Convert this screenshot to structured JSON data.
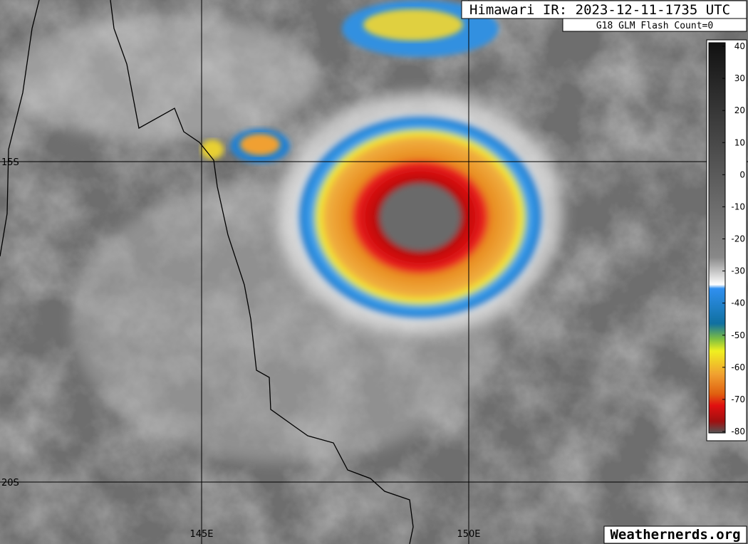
{
  "header": {
    "title": "Himawari IR: 2023-12-11-1735 UTC",
    "subtitle": "G18 GLM Flash Count=0"
  },
  "colorbar": {
    "lim": [
      40,
      -80
    ],
    "ticks": [
      40,
      30,
      20,
      10,
      0,
      -10,
      -20,
      -30,
      -40,
      -50,
      -60,
      -70,
      -80
    ]
  },
  "grid": {
    "lat_labels": [
      "15S",
      "20S"
    ],
    "lon_labels": [
      "145E",
      "150E"
    ]
  },
  "footer": {
    "watermark": "Weathernerds.org"
  }
}
